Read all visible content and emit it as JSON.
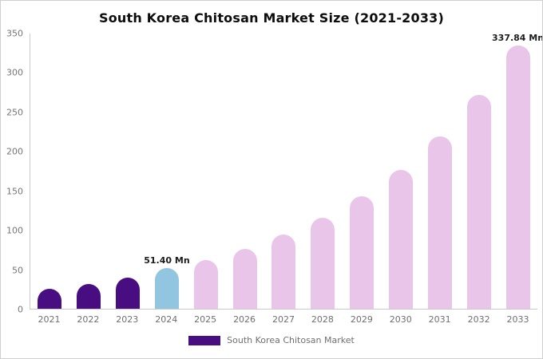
{
  "title": "South Korea Chitosan Market Size (2021-2033)",
  "legend": {
    "label": "South Korea Chitosan Market",
    "color": "#490d82"
  },
  "chart_data": {
    "type": "bar",
    "title": "South Korea Chitosan Market Size (2021-2033)",
    "categories": [
      "2021",
      "2022",
      "2023",
      "2024",
      "2025",
      "2026",
      "2027",
      "2028",
      "2029",
      "2030",
      "2031",
      "2032",
      "2033"
    ],
    "values": [
      25,
      31,
      40,
      51.4,
      62,
      76,
      94,
      116,
      143,
      177,
      219,
      272,
      337.84
    ],
    "bar_colors": [
      "#490d82",
      "#490d82",
      "#490d82",
      "#92c5e0",
      "#e9c6e9",
      "#e9c6e9",
      "#e9c6e9",
      "#e9c6e9",
      "#e9c6e9",
      "#e9c6e9",
      "#e9c6e9",
      "#e9c6e9",
      "#e9c6e9"
    ],
    "xlabel": "",
    "ylabel": "",
    "ylim": [
      0,
      350
    ],
    "yticks": [
      0,
      50,
      100,
      150,
      200,
      250,
      300,
      350
    ],
    "grid": false,
    "annotations": [
      {
        "category": "2024",
        "text": "51.40 Mn"
      },
      {
        "category": "2033",
        "text": "337.84 Mn"
      }
    ],
    "legend_position": "bottom",
    "unit": "Mn"
  }
}
